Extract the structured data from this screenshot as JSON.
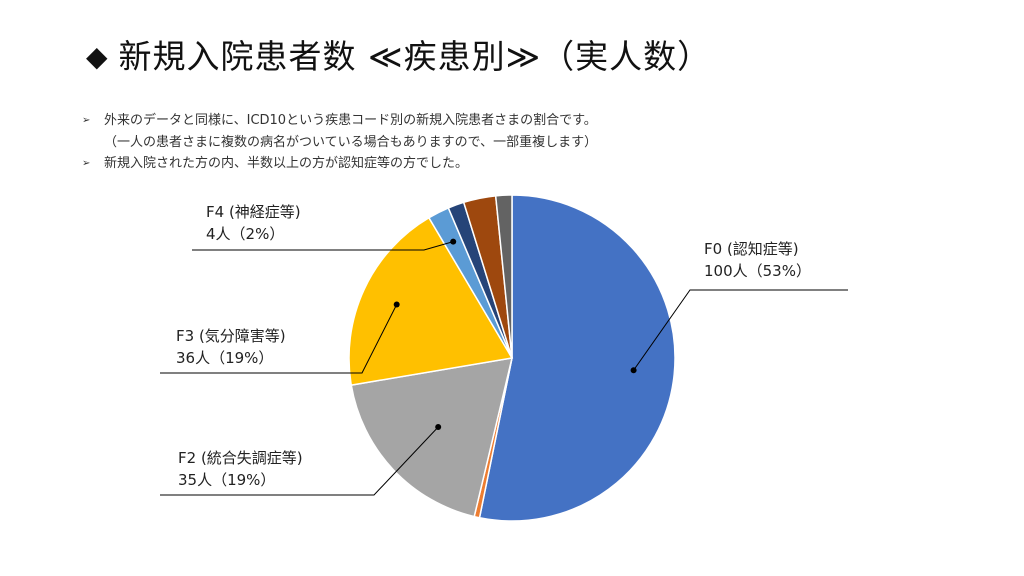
{
  "title": {
    "symbol": "◆",
    "text": "新規入院患者数 ≪疾患別≫（実人数）"
  },
  "notes": [
    {
      "bullet": "➢",
      "text": "外来のデータと同様に、ICD10という疾患コード別の新規入院患者さまの割合です。"
    },
    {
      "bullet": "",
      "text": "（一人の患者さまに複数の病名がついている場合もありますので、一部重複します）"
    },
    {
      "bullet": "➢",
      "text": "新規入院された方の内、半数以上の方が認知症等の方でした。"
    }
  ],
  "chart_data": {
    "type": "pie",
    "start_angle_deg": 0,
    "direction": "clockwise",
    "slices": [
      {
        "key": "f0",
        "value": 100,
        "color": "#4472C4",
        "label_line1": "F0 (認知症等)",
        "label_line2": "100人（53%）"
      },
      {
        "key": "s1",
        "value": 1,
        "color": "#ED7D31"
      },
      {
        "key": "f2",
        "value": 35,
        "color": "#A5A5A5",
        "label_line1": "F2 (統合失調症等)",
        "label_line2": "35人（19%）"
      },
      {
        "key": "f3",
        "value": 36,
        "color": "#FFC000",
        "label_line1": "F3 (気分障害等)",
        "label_line2": "36人（19%）"
      },
      {
        "key": "f4",
        "value": 4,
        "color": "#5B9BD5",
        "label_line1": "F4 (神経症等)",
        "label_line2": "4人（2%）"
      },
      {
        "key": "s5",
        "value": 3,
        "color": "#264478"
      },
      {
        "key": "s6",
        "value": 6,
        "color": "#9E480E"
      },
      {
        "key": "s7",
        "value": 3,
        "color": "#636363"
      }
    ]
  }
}
